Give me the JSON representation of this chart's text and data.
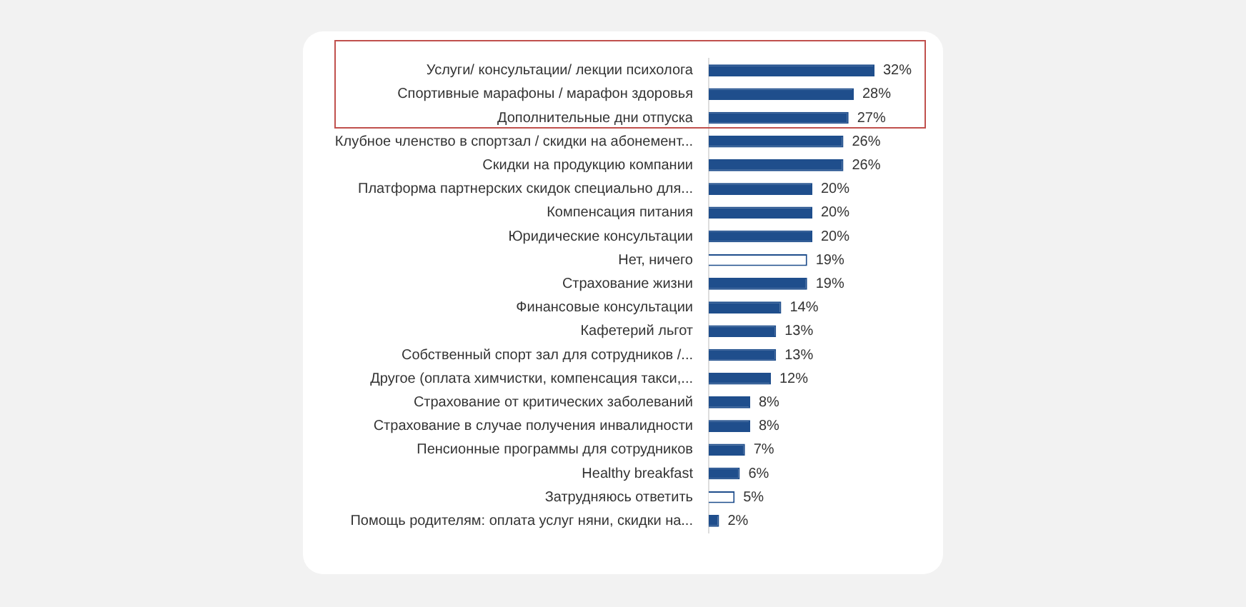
{
  "chart_data": {
    "type": "bar",
    "orientation": "horizontal",
    "categories": [
      "Услуги/ консультации/ лекции психолога",
      "Спортивные марафоны / марафон здоровья",
      "Дополнительные дни отпуска",
      "Клубное членство в спортзал / скидки на абонемент...",
      "Скидки на продукцию компании",
      "Платформа партнерских скидок специально для...",
      "Компенсация питания",
      "Юридические консультации",
      "Нет, ничего",
      "Страхование жизни",
      "Финансовые консультации",
      "Кафетерий льгот",
      "Собственный спорт зал для сотрудников /...",
      "Другое (оплата химчистки, компенсация такси,...",
      "Страхование от критических заболеваний",
      "Страхование в случае получения инвалидности",
      "Пенсионные программы для сотрудников",
      "Healthy breakfast",
      "Затрудняюсь ответить",
      "Помощь родителям: оплата услуг няни, скидки на..."
    ],
    "values": [
      32,
      28,
      27,
      26,
      26,
      20,
      20,
      20,
      19,
      19,
      14,
      13,
      13,
      12,
      8,
      8,
      7,
      6,
      5,
      2
    ],
    "value_labels": [
      "32%",
      "28%",
      "27%",
      "26%",
      "26%",
      "20%",
      "20%",
      "20%",
      "19%",
      "19%",
      "14%",
      "13%",
      "13%",
      "12%",
      "8%",
      "8%",
      "7%",
      "6%",
      "5%",
      "2%"
    ],
    "colors": [
      "#1f4e8c",
      "#1f4e8c",
      "#1f4e8c",
      "#1f4e8c",
      "#1f4e8c",
      "#1f4e8c",
      "#1f4e8c",
      "#1f4e8c",
      "#ffffff",
      "#1f4e8c",
      "#1f4e8c",
      "#1f4e8c",
      "#1f4e8c",
      "#1f4e8c",
      "#1f4e8c",
      "#1f4e8c",
      "#1f4e8c",
      "#1f4e8c",
      "#ffffff",
      "#1f4e8c"
    ],
    "xlim": [
      0,
      32
    ],
    "tick_labels": "y",
    "grid": false,
    "legend": false
  }
}
